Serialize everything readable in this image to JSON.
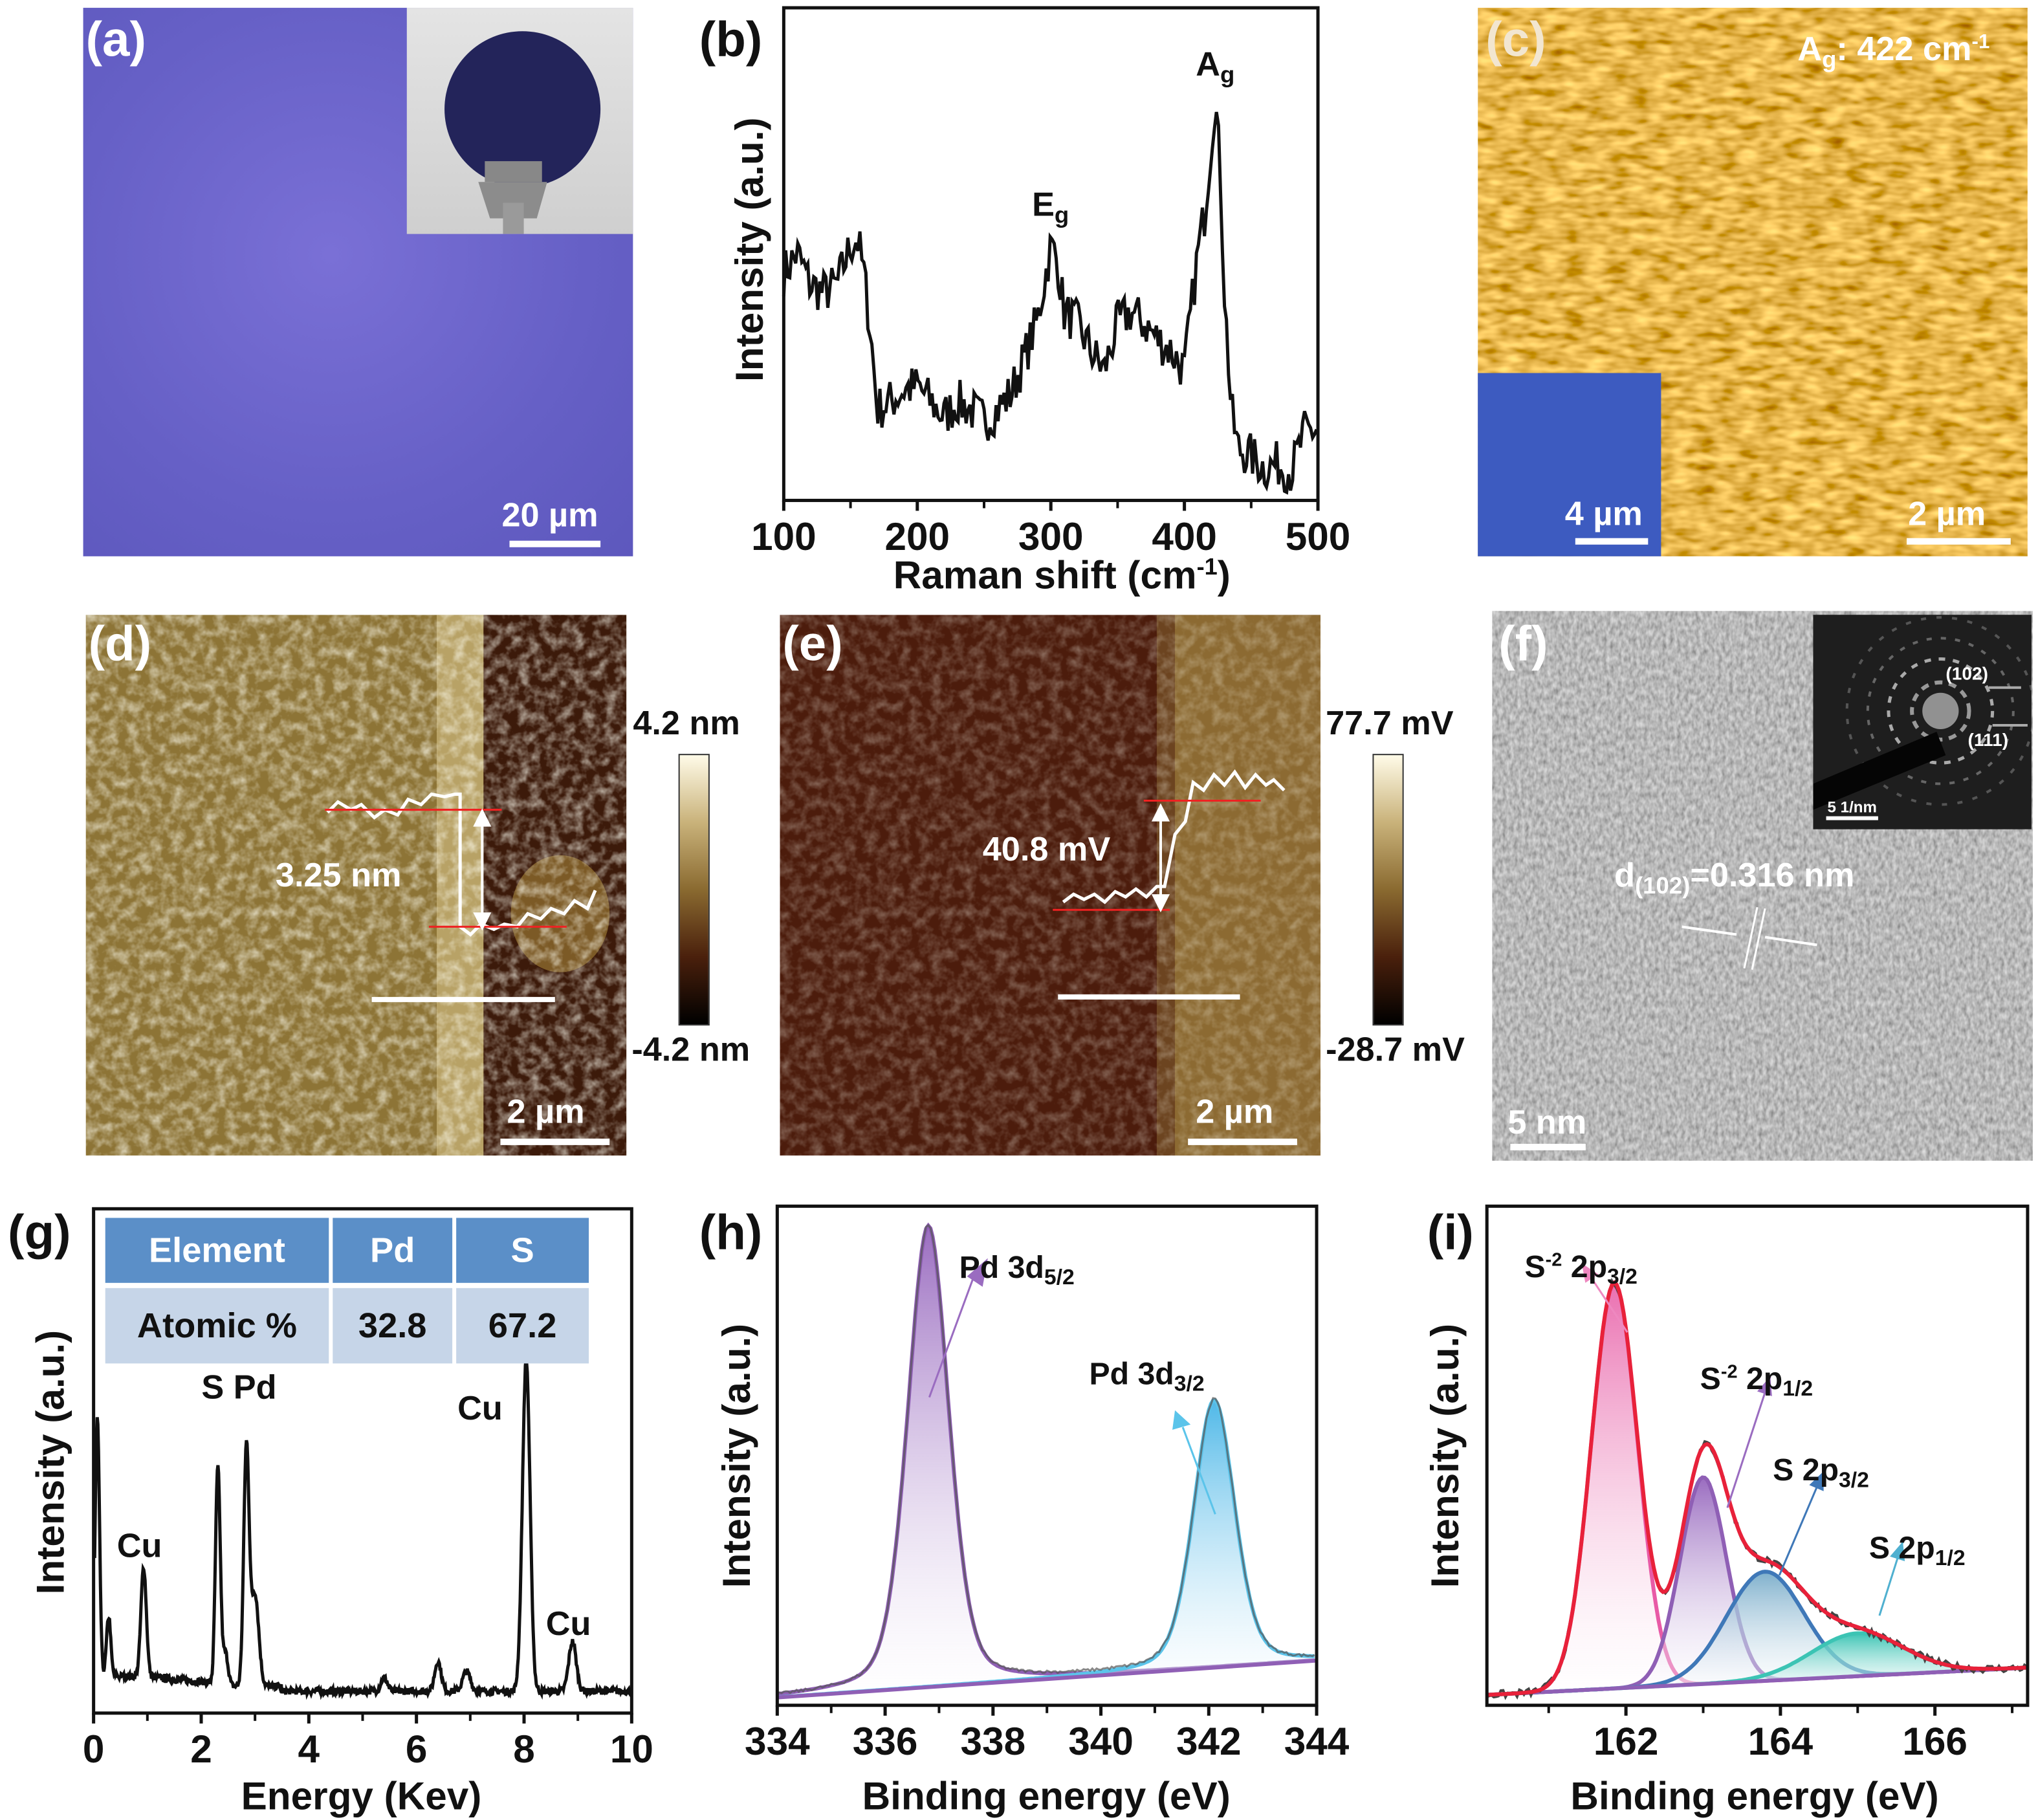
{
  "panels": {
    "a": {
      "label": "(a)",
      "scale": "20 µm"
    },
    "b": {
      "label": "(b)"
    },
    "c": {
      "label": "(c)",
      "mode": "A",
      "mode_sub": "g",
      "mode_value": ": 422 cm",
      "mode_sup": "-1",
      "inset_scale": "4 µm",
      "scale": "2 µm"
    },
    "d": {
      "label": "(d)",
      "step": "3.25 nm",
      "cb_max": "4.2 nm",
      "cb_min": "-4.2 nm",
      "scale": "2 µm"
    },
    "e": {
      "label": "(e)",
      "step": "40.8 mV",
      "cb_max": "77.7 mV",
      "cb_min": "-28.7 mV",
      "scale": "2 µm"
    },
    "f": {
      "label": "(f)",
      "d": "d",
      "d_sub": "(102)",
      "d_value": "=0.316 nm",
      "scale": "5 nm",
      "saed_102": "(102)",
      "saed_111": "(111)",
      "saed_scale": "5 1/nm"
    },
    "g": {
      "label": "(g)"
    },
    "h": {
      "label": "(h)"
    },
    "i": {
      "label": "(i)"
    }
  },
  "chart_data": [
    {
      "id": "b",
      "type": "line",
      "title": "",
      "xlabel": "Raman shift (cm",
      "xlabel_sup": "-1",
      "xlabel_end": ")",
      "ylabel": "Intensity (a.u.)",
      "xlim": [
        100,
        500
      ],
      "ylim": [
        0,
        100
      ],
      "xticks": [
        "100",
        "200",
        "300",
        "400",
        "500"
      ],
      "x": [
        100,
        110,
        120,
        130,
        140,
        150,
        155,
        160,
        165,
        170,
        180,
        190,
        200,
        210,
        220,
        230,
        240,
        250,
        260,
        270,
        280,
        290,
        300,
        305,
        310,
        320,
        330,
        340,
        350,
        360,
        370,
        380,
        390,
        400,
        405,
        410,
        415,
        420,
        423,
        427,
        430,
        435,
        440,
        450,
        460,
        470,
        480,
        490,
        500
      ],
      "y": [
        55,
        60,
        52,
        50,
        52,
        62,
        64,
        55,
        40,
        20,
        22,
        25,
        26,
        22,
        18,
        22,
        20,
        17,
        20,
        24,
        33,
        43,
        62,
        58,
        45,
        42,
        35,
        30,
        42,
        45,
        42,
        38,
        35,
        30,
        45,
        60,
        70,
        88,
        100,
        80,
        50,
        20,
        10,
        8,
        5,
        6,
        4,
        14,
        15
      ],
      "annotations": [
        {
          "text": "E",
          "sub": "g",
          "x": 300
        },
        {
          "text": "A",
          "sub": "g",
          "x": 422
        }
      ]
    },
    {
      "id": "g",
      "type": "line",
      "xlabel": "Energy (Kev)",
      "ylabel": "Intensity (a.u.)",
      "xlim": [
        0,
        10
      ],
      "ylim": [
        0,
        100
      ],
      "xticks": [
        "0",
        "2",
        "4",
        "6",
        "8",
        "10"
      ],
      "peaks": [
        {
          "x": 0.07,
          "height": 78,
          "width": 0.04
        },
        {
          "x": 0.28,
          "height": 18,
          "width": 0.04
        },
        {
          "x": 0.93,
          "height": 33,
          "width": 0.05
        },
        {
          "x": 2.31,
          "height": 66,
          "width": 0.045
        },
        {
          "x": 2.45,
          "height": 10,
          "width": 0.05
        },
        {
          "x": 2.84,
          "height": 72,
          "width": 0.05
        },
        {
          "x": 3.0,
          "height": 28,
          "width": 0.07
        },
        {
          "x": 5.4,
          "height": 4,
          "width": 0.06
        },
        {
          "x": 6.4,
          "height": 9,
          "width": 0.06
        },
        {
          "x": 6.93,
          "height": 6,
          "width": 0.07
        },
        {
          "x": 8.04,
          "height": 100,
          "width": 0.07
        },
        {
          "x": 8.9,
          "height": 15,
          "width": 0.07
        }
      ],
      "annotations": [
        {
          "text": "Cu",
          "x": 0.93
        },
        {
          "text": "S Pd",
          "x": 2.6
        },
        {
          "text": "Cu",
          "x": 8.04
        },
        {
          "text": "Cu",
          "x": 8.9
        }
      ],
      "table": {
        "header": [
          "Element",
          "Pd",
          "S"
        ],
        "row": [
          "Atomic %",
          "32.8",
          "67.2"
        ]
      }
    },
    {
      "id": "h",
      "type": "area",
      "xlabel": "Binding energy (eV)",
      "ylabel": "Intensity (a.u.)",
      "xlim": [
        334,
        344
      ],
      "ylim": [
        0,
        105
      ],
      "xticks": [
        "334",
        "336",
        "338",
        "340",
        "342",
        "344"
      ],
      "background": [
        0,
        8
      ],
      "components": [
        {
          "name": "Pd 3d",
          "sub": "5/2",
          "center": 336.8,
          "height": 100,
          "width": 0.38,
          "color": "#8f5fb5"
        },
        {
          "name": "Pd 3d",
          "sub": "3/2",
          "center": 342.1,
          "height": 58,
          "width": 0.38,
          "color": "#5bc4ea"
        }
      ]
    },
    {
      "id": "i",
      "type": "area",
      "xlabel": "Binding energy (eV)",
      "ylabel": "Intensity (a.u.)",
      "xlim": [
        160.2,
        167.2
      ],
      "ylim": [
        0,
        110
      ],
      "xticks": [
        "162",
        "164",
        "166"
      ],
      "background": [
        2,
        9
      ],
      "components": [
        {
          "name": "S",
          "sup": "-2",
          "label": " 2p",
          "sub": "3/2",
          "center": 161.85,
          "height": 104,
          "width": 0.3,
          "color": "#e85aa6"
        },
        {
          "name": "S",
          "sup": "-2",
          "label": " 2p",
          "sub": "1/2",
          "center": 163.0,
          "height": 53,
          "width": 0.3,
          "color": "#8f5fb5"
        },
        {
          "name": "S",
          "sup": "",
          "label": " 2p",
          "sub": "3/2",
          "center": 163.8,
          "height": 28,
          "width": 0.5,
          "color": "#3f78b8"
        },
        {
          "name": "S",
          "sup": "",
          "label": " 2p",
          "sub": "1/2",
          "center": 165.0,
          "height": 11,
          "width": 0.6,
          "color": "#3cc4b4"
        }
      ],
      "envelope_color": "#e8213a"
    }
  ]
}
